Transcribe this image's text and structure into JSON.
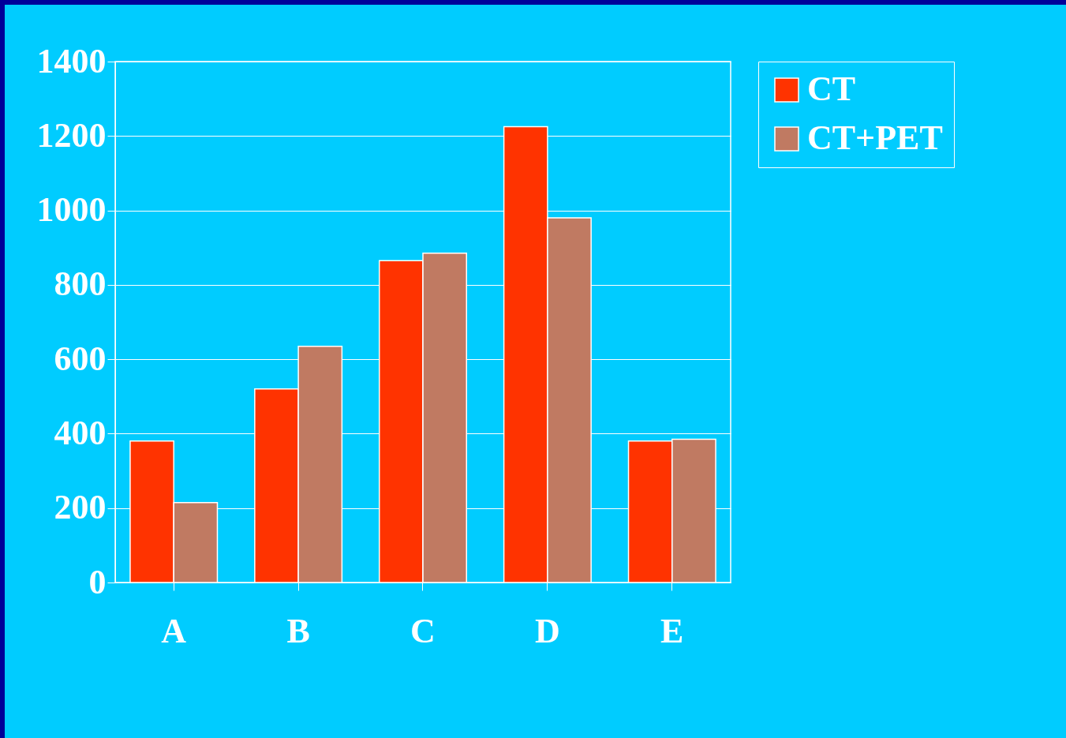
{
  "chart_data": {
    "type": "bar",
    "categories": [
      "A",
      "B",
      "C",
      "D",
      "E"
    ],
    "series": [
      {
        "name": "CT",
        "color": "#ff3300",
        "values": [
          380,
          520,
          865,
          1225,
          380
        ]
      },
      {
        "name": "CT+PET",
        "color": "#c07a62",
        "values": [
          215,
          635,
          885,
          980,
          385
        ]
      }
    ],
    "ylim": [
      0,
      1400
    ],
    "yticks": [
      0,
      200,
      400,
      600,
      800,
      1000,
      1200,
      1400
    ],
    "grid": "y",
    "legend": "right"
  }
}
